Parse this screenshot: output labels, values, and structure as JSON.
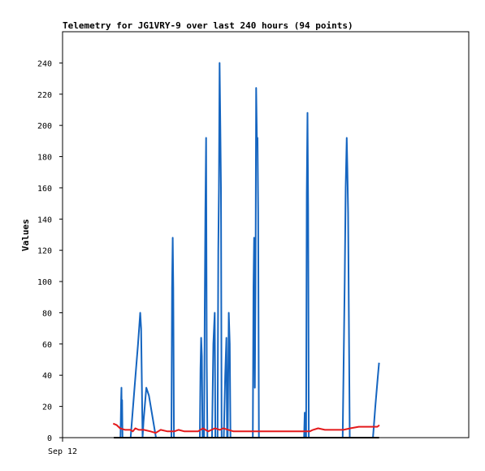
{
  "chart_data": {
    "type": "line",
    "title": "Telemetry for JG1VRY-9 over last 240 hours (94 points)",
    "xlabel": "",
    "ylabel": "Values",
    "x_tick_labels": [
      "Sep 12"
    ],
    "ylim": [
      0,
      260
    ],
    "y_ticks": [
      0,
      20,
      40,
      60,
      80,
      100,
      120,
      140,
      160,
      180,
      200,
      220,
      240
    ],
    "xlim": [
      0,
      240
    ],
    "grid": false,
    "legend": "none",
    "colors": {
      "blue": "#1565c0",
      "red": "#e41a1c",
      "black": "#000000"
    },
    "series": [
      {
        "color": "#1565c0",
        "points": [
          [
            33.4,
            0
          ],
          [
            34.2,
            0
          ],
          [
            34.6,
            24
          ],
          [
            34.8,
            32
          ],
          [
            35.0,
            8
          ],
          [
            35.2,
            24
          ],
          [
            35.4,
            0
          ],
          [
            40.2,
            0
          ],
          [
            42.4,
            30
          ],
          [
            44.6,
            60
          ],
          [
            45.9,
            80
          ],
          [
            46.4,
            70
          ],
          [
            47.3,
            0
          ],
          [
            47.8,
            10
          ],
          [
            49.5,
            32
          ],
          [
            51.0,
            27
          ],
          [
            55.2,
            0
          ],
          [
            64.3,
            0
          ],
          [
            64.7,
            96
          ],
          [
            65.1,
            128
          ],
          [
            65.4,
            96
          ],
          [
            65.8,
            0
          ],
          [
            81.1,
            0
          ],
          [
            81.5,
            44
          ],
          [
            81.9,
            64
          ],
          [
            82.3,
            52
          ],
          [
            82.7,
            0
          ],
          [
            83.6,
            0
          ],
          [
            84.0,
            80
          ],
          [
            84.4,
            144
          ],
          [
            84.8,
            192
          ],
          [
            85.2,
            48
          ],
          [
            85.6,
            0
          ],
          [
            88.3,
            0
          ],
          [
            89.1,
            60
          ],
          [
            89.9,
            80
          ],
          [
            90.3,
            0
          ],
          [
            91.6,
            0
          ],
          [
            92.0,
            120
          ],
          [
            92.4,
            160
          ],
          [
            92.8,
            240
          ],
          [
            93.2,
            200
          ],
          [
            93.6,
            160
          ],
          [
            94.0,
            0
          ],
          [
            95.3,
            0
          ],
          [
            96.1,
            40
          ],
          [
            96.8,
            64
          ],
          [
            97.2,
            0
          ],
          [
            97.6,
            0
          ],
          [
            98.2,
            80
          ],
          [
            98.8,
            60
          ],
          [
            99.2,
            0
          ],
          [
            112.4,
            0
          ],
          [
            112.8,
            96
          ],
          [
            113.2,
            128
          ],
          [
            113.6,
            32
          ],
          [
            114.0,
            96
          ],
          [
            114.4,
            224
          ],
          [
            114.8,
            192
          ],
          [
            115.2,
            192
          ],
          [
            115.6,
            144
          ],
          [
            116.0,
            0
          ],
          [
            142.7,
            0
          ],
          [
            143.1,
            16
          ],
          [
            143.5,
            0
          ],
          [
            143.9,
            0
          ],
          [
            144.3,
            156
          ],
          [
            144.7,
            208
          ],
          [
            145.1,
            148
          ],
          [
            145.5,
            0
          ],
          [
            165.5,
            0
          ],
          [
            166.7,
            100
          ],
          [
            167.3,
            160
          ],
          [
            167.9,
            192
          ],
          [
            168.3,
            172
          ],
          [
            168.7,
            144
          ],
          [
            169.7,
            0
          ],
          [
            183.4,
            0
          ],
          [
            184.8,
            20
          ],
          [
            186.2,
            38
          ],
          [
            187.0,
            48
          ]
        ]
      },
      {
        "color": "#e41a1c",
        "points": [
          [
            29.9,
            9.0
          ],
          [
            32.0,
            8.0
          ],
          [
            34.0,
            6.0
          ],
          [
            37.0,
            5.0
          ],
          [
            40.0,
            5.0
          ],
          [
            41.5,
            4.0
          ],
          [
            43.0,
            6.0
          ],
          [
            45.0,
            5.0
          ],
          [
            48.0,
            5.0
          ],
          [
            52.0,
            4.0
          ],
          [
            55.0,
            3.0
          ],
          [
            58.0,
            5.0
          ],
          [
            62.0,
            4.0
          ],
          [
            66.0,
            4.0
          ],
          [
            68.5,
            5.0
          ],
          [
            72.0,
            4.0
          ],
          [
            76.0,
            4.0
          ],
          [
            80.0,
            4.0
          ],
          [
            83.0,
            6.0
          ],
          [
            86.0,
            4.0
          ],
          [
            90.0,
            6.0
          ],
          [
            93.0,
            5.0
          ],
          [
            95.0,
            6.0
          ],
          [
            98.0,
            5.0
          ],
          [
            101.0,
            4.0
          ],
          [
            108.0,
            4.0
          ],
          [
            120.0,
            4.0
          ],
          [
            135.0,
            4.0
          ],
          [
            146.0,
            4.0
          ],
          [
            148.0,
            5.0
          ],
          [
            151.0,
            6.0
          ],
          [
            155.0,
            5.0
          ],
          [
            160.0,
            5.0
          ],
          [
            166.0,
            5.0
          ],
          [
            170.0,
            6.0
          ],
          [
            175.0,
            7.0
          ],
          [
            182.0,
            7.0
          ],
          [
            186.0,
            7.0
          ],
          [
            187.2,
            8.0
          ]
        ]
      },
      {
        "color": "#000000",
        "points": [
          [
            30.3,
            0
          ],
          [
            187.0,
            0
          ]
        ]
      }
    ]
  }
}
